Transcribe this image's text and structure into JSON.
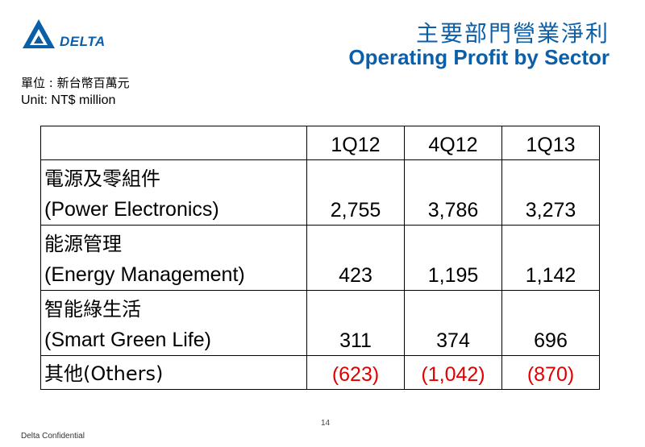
{
  "header": {
    "logo_text": "DELTA",
    "title_zh": "主要部門營業淨利",
    "title_en": "Operating Profit by Sector"
  },
  "unit": {
    "zh": "單位 : 新台幣百萬元",
    "en": "Unit: NT$ million"
  },
  "table": {
    "columns": [
      "1Q12",
      "4Q12",
      "1Q13"
    ],
    "rows": [
      {
        "label_zh": "電源及零組件",
        "label_en": "(Power Electronics)",
        "values": [
          "2,755",
          "3,786",
          "3,273"
        ]
      },
      {
        "label_zh": "能源管理",
        "label_en": "(Energy Management)",
        "values": [
          "423",
          "1,195",
          "1,142"
        ]
      },
      {
        "label_zh": "智能綠生活",
        "label_en": "(Smart Green Life)",
        "values": [
          "311",
          "374",
          "696"
        ]
      },
      {
        "label": "其他(Others)",
        "values": [
          "(623)",
          "(1,042)",
          "(870)"
        ]
      }
    ]
  },
  "colors": {
    "brand": "#0b5fa8",
    "negative": "#e00000"
  },
  "footer": {
    "page_number": "14",
    "confidential": "Delta Confidential"
  }
}
